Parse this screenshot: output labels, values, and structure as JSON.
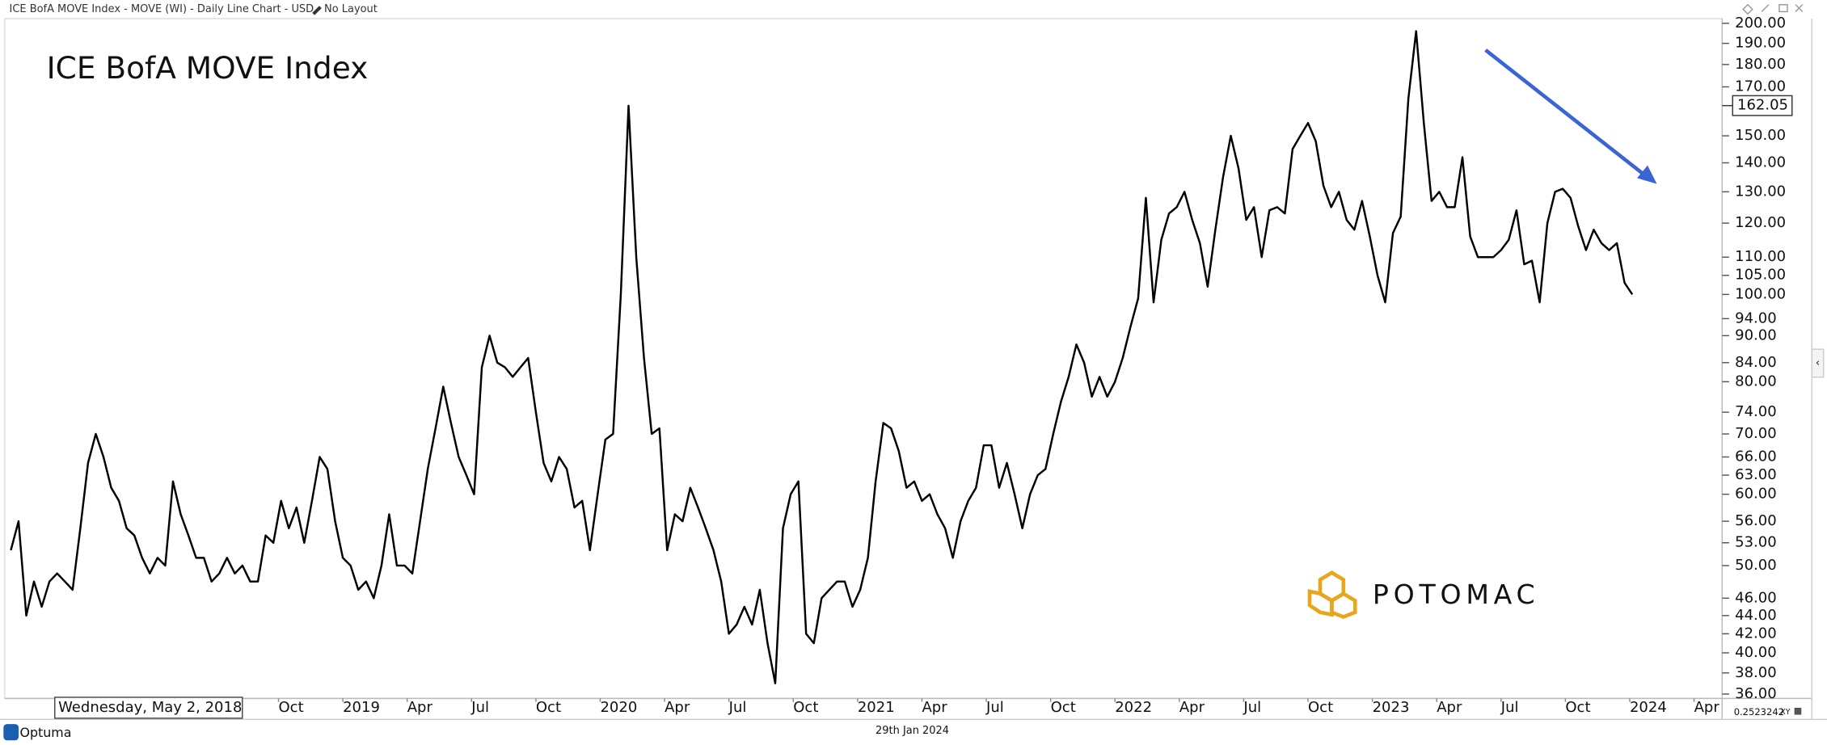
{
  "chart_data": {
    "type": "line",
    "header": "ICE BofA MOVE Index - MOVE (WI) - Daily Line Chart - USD - No Layout",
    "title": "ICE BofA MOVE Index",
    "crosshair_date": "Wednesday, May 2, 2018",
    "price_label": 162.05,
    "footer_date": "29th Jan 2024",
    "brand": "POTOMAC",
    "app": "Optuma",
    "scale_factor": 0.2523242,
    "xy_label": "XY",
    "log_scale": true,
    "grid": false,
    "color": "#000000",
    "xlim": [
      2017.686,
      2024.359
    ],
    "ylim": [
      35.6,
      202.4
    ],
    "xticks": [
      {
        "value": 2018.75,
        "label": "Oct"
      },
      2019,
      {
        "value": 2019.25,
        "label": "Apr"
      },
      {
        "value": 2019.5,
        "label": "Jul"
      },
      {
        "value": 2019.75,
        "label": "Oct"
      },
      2020,
      {
        "value": 2020.25,
        "label": "Apr"
      },
      {
        "value": 2020.5,
        "label": "Jul"
      },
      {
        "value": 2020.75,
        "label": "Oct"
      },
      2021,
      {
        "value": 2021.25,
        "label": "Apr"
      },
      {
        "value": 2021.5,
        "label": "Jul"
      },
      {
        "value": 2021.75,
        "label": "Oct"
      },
      2022,
      {
        "value": 2022.25,
        "label": "Apr"
      },
      {
        "value": 2022.5,
        "label": "Jul"
      },
      {
        "value": 2022.75,
        "label": "Oct"
      },
      2023,
      {
        "value": 2023.25,
        "label": "Apr"
      },
      {
        "value": 2023.5,
        "label": "Jul"
      },
      {
        "value": 2023.75,
        "label": "Oct"
      },
      2024,
      {
        "value": 2024.25,
        "label": "Apr"
      }
    ],
    "yticks": [
      {
        "value": 36,
        "label": "36.00"
      },
      {
        "value": 38,
        "label": "38.00"
      },
      {
        "value": 40,
        "label": "40.00"
      },
      {
        "value": 42,
        "label": "42.00"
      },
      {
        "value": 44,
        "label": "44.00"
      },
      {
        "value": 46,
        "label": "46.00"
      },
      {
        "value": 50,
        "label": "50.00"
      },
      {
        "value": 53,
        "label": "53.00"
      },
      {
        "value": 56,
        "label": "56.00"
      },
      {
        "value": 60,
        "label": "60.00"
      },
      {
        "value": 63,
        "label": "63.00"
      },
      {
        "value": 66,
        "label": "66.00"
      },
      {
        "value": 70,
        "label": "70.00"
      },
      {
        "value": 74,
        "label": "74.00"
      },
      {
        "value": 80,
        "label": "80.00"
      },
      {
        "value": 84,
        "label": "84.00"
      },
      {
        "value": 90,
        "label": "90.00"
      },
      {
        "value": 94,
        "label": "94.00"
      },
      {
        "value": 100,
        "label": "100.00"
      },
      {
        "value": 105,
        "label": "105.00"
      },
      {
        "value": 110,
        "label": "110.00"
      },
      {
        "value": 120,
        "label": "120.00"
      },
      {
        "value": 130,
        "label": "130.00"
      },
      {
        "value": 140,
        "label": "140.00"
      },
      {
        "value": 150,
        "label": "150.00"
      },
      {
        "value": 170,
        "label": "170.00"
      },
      {
        "value": 180,
        "label": "180.00"
      },
      {
        "value": 190,
        "label": "190.00"
      },
      {
        "value": 200,
        "label": "200.00"
      }
    ],
    "x": [
      2017.71,
      2017.74,
      2017.77,
      2017.8,
      2017.83,
      2017.86,
      2017.89,
      2017.92,
      2017.95,
      2017.98,
      2018.01,
      2018.04,
      2018.07,
      2018.1,
      2018.13,
      2018.16,
      2018.19,
      2018.22,
      2018.25,
      2018.28,
      2018.31,
      2018.34,
      2018.37,
      2018.4,
      2018.43,
      2018.46,
      2018.49,
      2018.52,
      2018.55,
      2018.58,
      2018.61,
      2018.64,
      2018.67,
      2018.7,
      2018.73,
      2018.76,
      2018.79,
      2018.82,
      2018.85,
      2018.88,
      2018.91,
      2018.94,
      2018.97,
      2019.0,
      2019.03,
      2019.06,
      2019.09,
      2019.12,
      2019.15,
      2019.18,
      2019.21,
      2019.24,
      2019.27,
      2019.3,
      2019.33,
      2019.36,
      2019.39,
      2019.42,
      2019.45,
      2019.48,
      2019.51,
      2019.54,
      2019.57,
      2019.6,
      2019.63,
      2019.66,
      2019.69,
      2019.72,
      2019.75,
      2019.78,
      2019.81,
      2019.84,
      2019.87,
      2019.9,
      2019.93,
      2019.96,
      2019.99,
      2020.02,
      2020.05,
      2020.08,
      2020.11,
      2020.14,
      2020.17,
      2020.2,
      2020.23,
      2020.26,
      2020.29,
      2020.32,
      2020.35,
      2020.38,
      2020.41,
      2020.44,
      2020.47,
      2020.5,
      2020.53,
      2020.56,
      2020.59,
      2020.62,
      2020.65,
      2020.68,
      2020.71,
      2020.74,
      2020.77,
      2020.8,
      2020.83,
      2020.86,
      2020.89,
      2020.92,
      2020.95,
      2020.98,
      2021.01,
      2021.04,
      2021.07,
      2021.1,
      2021.13,
      2021.16,
      2021.19,
      2021.22,
      2021.25,
      2021.28,
      2021.31,
      2021.34,
      2021.37,
      2021.4,
      2021.43,
      2021.46,
      2021.49,
      2021.52,
      2021.55,
      2021.58,
      2021.61,
      2021.64,
      2021.67,
      2021.7,
      2021.73,
      2021.76,
      2021.79,
      2021.82,
      2021.85,
      2021.88,
      2021.91,
      2021.94,
      2021.97,
      2022.0,
      2022.03,
      2022.06,
      2022.09,
      2022.12,
      2022.15,
      2022.18,
      2022.21,
      2022.24,
      2022.27,
      2022.3,
      2022.33,
      2022.36,
      2022.39,
      2022.42,
      2022.45,
      2022.48,
      2022.51,
      2022.54,
      2022.57,
      2022.6,
      2022.63,
      2022.66,
      2022.69,
      2022.72,
      2022.75,
      2022.78,
      2022.81,
      2022.84,
      2022.87,
      2022.9,
      2022.93,
      2022.96,
      2022.99,
      2023.02,
      2023.05,
      2023.08,
      2023.11,
      2023.14,
      2023.17,
      2023.2,
      2023.23,
      2023.26,
      2023.29,
      2023.32,
      2023.35,
      2023.38,
      2023.41,
      2023.44,
      2023.47,
      2023.5,
      2023.53,
      2023.56,
      2023.59,
      2023.62,
      2023.65,
      2023.68,
      2023.71,
      2023.74,
      2023.77,
      2023.8,
      2023.83,
      2023.86,
      2023.89,
      2023.92,
      2023.95,
      2023.98,
      2024.01
    ],
    "values": [
      52,
      56,
      44,
      48,
      45,
      48,
      49,
      48,
      47,
      55,
      65,
      70,
      66,
      61,
      59,
      55,
      54,
      51,
      49,
      51,
      50,
      62,
      57,
      54,
      51,
      51,
      48,
      49,
      51,
      49,
      50,
      48,
      48,
      54,
      53,
      59,
      55,
      58,
      53,
      59,
      66,
      64,
      56,
      51,
      50,
      47,
      48,
      46,
      50,
      57,
      50,
      50,
      49,
      56,
      64,
      71,
      79,
      72,
      66,
      63,
      60,
      83,
      90,
      84,
      83,
      81,
      83,
      85,
      74,
      65,
      62,
      66,
      64,
      58,
      59,
      52,
      60,
      69,
      70,
      100,
      162,
      110,
      85,
      70,
      71,
      52,
      57,
      56,
      61,
      58,
      55,
      52,
      48,
      42,
      43,
      45,
      43,
      47,
      41,
      37,
      55,
      60,
      62,
      42,
      41,
      46,
      47,
      48,
      48,
      45,
      47,
      51,
      62,
      72,
      71,
      67,
      61,
      62,
      59,
      60,
      57,
      55,
      51,
      56,
      59,
      61,
      68,
      68,
      61,
      65,
      60,
      55,
      60,
      63,
      64,
      70,
      76,
      81,
      88,
      84,
      77,
      81,
      77,
      80,
      85,
      92,
      99,
      128,
      98,
      115,
      123,
      125,
      130,
      121,
      114,
      102,
      118,
      135,
      150,
      138,
      121,
      125,
      110,
      124,
      125,
      123,
      145,
      150,
      155,
      148,
      132,
      125,
      130,
      121,
      118,
      127,
      116,
      105,
      98,
      117,
      122,
      165,
      196,
      155,
      127,
      130,
      125,
      125,
      142,
      116,
      110,
      110,
      110,
      112,
      115,
      124,
      108,
      109,
      98,
      120,
      130,
      131,
      128,
      119,
      112,
      118,
      114,
      112,
      114,
      103,
      100
    ]
  }
}
